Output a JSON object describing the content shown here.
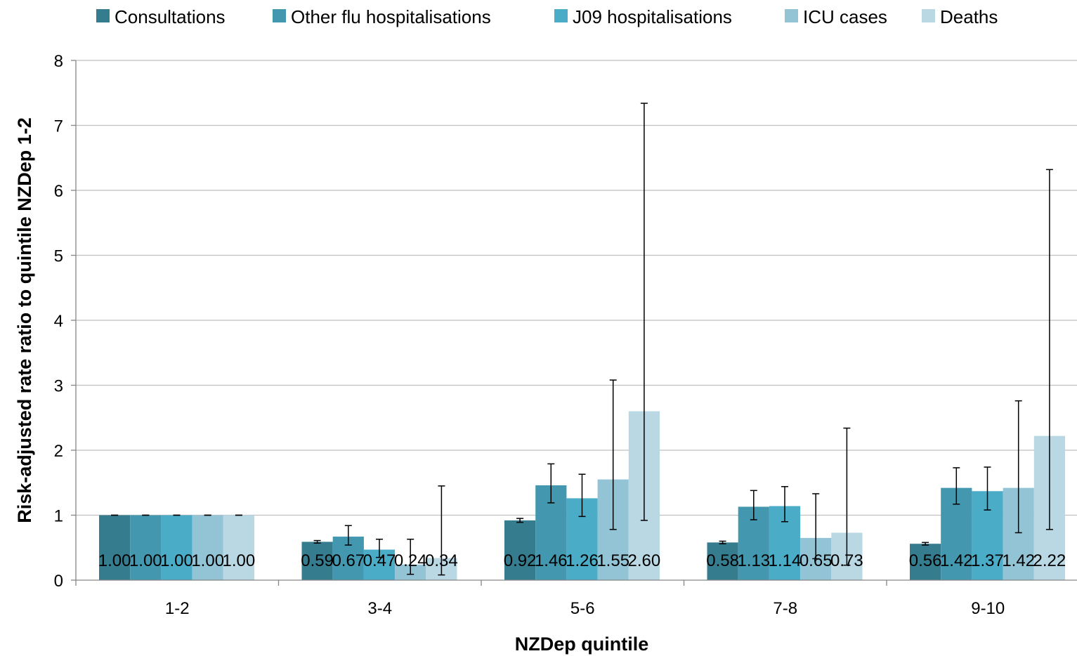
{
  "chart_data": {
    "type": "bar",
    "title": "",
    "xlabel": "NZDep quintile",
    "ylabel": "Risk-adjusted rate ratio to quintile NZDep 1-2",
    "ylim": [
      0,
      8
    ],
    "yticks": [
      0,
      1,
      2,
      3,
      4,
      5,
      6,
      7,
      8
    ],
    "grid": true,
    "legend_position": "top",
    "categories": [
      "1-2",
      "3-4",
      "5-6",
      "7-8",
      "9-10"
    ],
    "series": [
      {
        "name": "Consultations",
        "color": "#367C8F",
        "values": [
          1.0,
          0.59,
          0.92,
          0.58,
          0.56
        ],
        "labels": [
          "1.00",
          "0.59",
          "0.92",
          "0.58",
          "0.56"
        ],
        "error_low": [
          1.0,
          0.57,
          0.89,
          0.56,
          0.54
        ],
        "error_high": [
          1.0,
          0.61,
          0.95,
          0.6,
          0.58
        ]
      },
      {
        "name": "Other flu hospitalisations",
        "color": "#4398AF",
        "values": [
          1.0,
          0.67,
          1.46,
          1.13,
          1.42
        ],
        "labels": [
          "1.00",
          "0.67",
          "1.46",
          "1.13",
          "1.42"
        ],
        "error_low": [
          1.0,
          0.54,
          1.19,
          0.93,
          1.17
        ],
        "error_high": [
          1.0,
          0.84,
          1.79,
          1.38,
          1.73
        ]
      },
      {
        "name": "J09 hospitalisations",
        "color": "#4AACC6",
        "values": [
          1.0,
          0.47,
          1.26,
          1.14,
          1.37
        ],
        "labels": [
          "1.00",
          "0.47",
          "1.26",
          "1.14",
          "1.37"
        ],
        "error_low": [
          1.0,
          0.35,
          0.98,
          0.9,
          1.08
        ],
        "error_high": [
          1.0,
          0.63,
          1.63,
          1.44,
          1.74
        ]
      },
      {
        "name": "ICU cases",
        "color": "#92C4D5",
        "values": [
          1.0,
          0.24,
          1.55,
          0.65,
          1.42
        ],
        "labels": [
          "1.00",
          "0.24",
          "1.55",
          "0.65",
          "1.42"
        ],
        "error_low": [
          1.0,
          0.09,
          0.78,
          0.33,
          0.73
        ],
        "error_high": [
          1.0,
          0.63,
          3.08,
          1.33,
          2.76
        ]
      },
      {
        "name": "Deaths",
        "color": "#B9D8E3",
        "values": [
          1.0,
          0.34,
          2.6,
          0.73,
          2.22
        ],
        "labels": [
          "1.00",
          "0.34",
          "2.60",
          "0.73",
          "2.22"
        ],
        "error_low": [
          1.0,
          0.08,
          0.92,
          0.23,
          0.78
        ],
        "error_high": [
          1.0,
          1.45,
          7.34,
          2.34,
          6.32
        ]
      }
    ]
  }
}
